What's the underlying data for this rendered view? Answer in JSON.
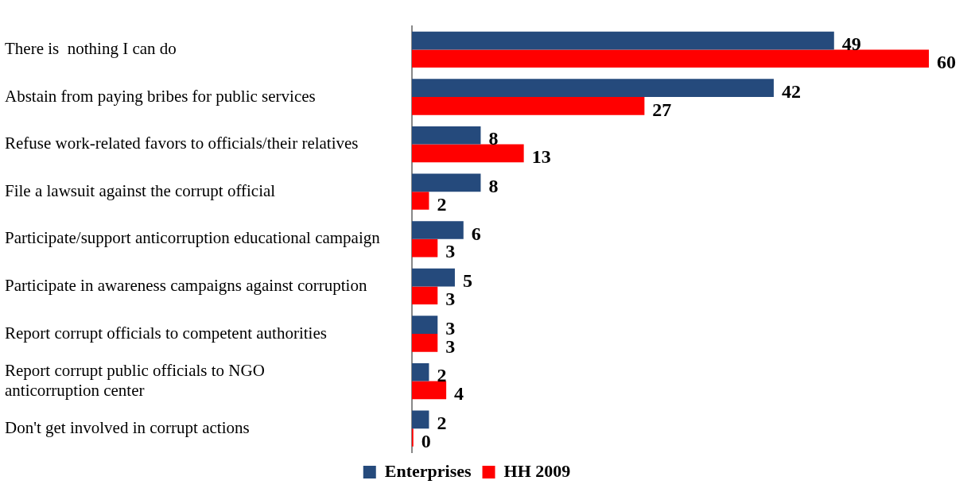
{
  "chart_data": {
    "type": "bar",
    "orientation": "horizontal",
    "categories": [
      "There is  nothing I can do",
      "Abstain from paying bribes for public services",
      "Refuse work-related favors to officials/their relatives",
      "File a lawsuit against the corrupt official",
      "Participate/support anticorruption educational campaign",
      "Participate in awareness campaigns against corruption",
      "Report corrupt officials to competent authorities",
      "Report corrupt public officials to NGO anticorruption center",
      "Don't get involved in corrupt actions"
    ],
    "series": [
      {
        "name": "Enterprises",
        "color": "#254a7c",
        "values": [
          49,
          42,
          8,
          8,
          6,
          5,
          3,
          2,
          2
        ]
      },
      {
        "name": "HH 2009",
        "color": "#ff0000",
        "values": [
          60,
          27,
          13,
          2,
          3,
          3,
          3,
          4,
          0
        ]
      }
    ],
    "data_labels": true,
    "legend": "bottom",
    "grid": false,
    "tick_labels": "y"
  }
}
